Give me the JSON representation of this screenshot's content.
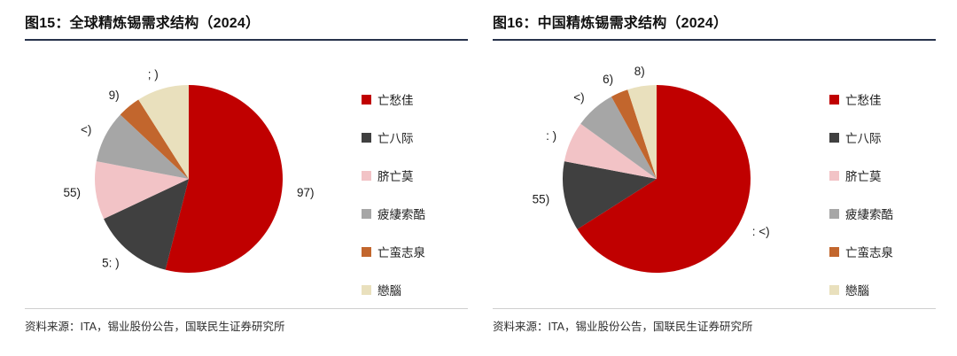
{
  "page": {
    "background": "#FFFFFF"
  },
  "colors": {
    "title_underline": "#27324B",
    "source_divider": "#CFCFCF",
    "label_text": "#1C1C1C"
  },
  "charts": [
    {
      "title": "图15：全球精炼锡需求结构（2024）",
      "source": "资料来源：ITA，锡业股份公告，国联民生证券研究所"
    },
    {
      "title": "图16：中国精炼锡需求结构（2024）",
      "source": "资料来源：ITA，锡业股份公告，国联民生证券研究所"
    }
  ],
  "chart_data": [
    {
      "type": "pie",
      "title": "图15：全球精炼锡需求结构（2024）",
      "start_angle_deg": 0,
      "direction": "clockwise",
      "legend_position": "right",
      "unit": "percent_estimated_from_arc",
      "slices": [
        {
          "name": "亡愁佳",
          "value": 54,
          "data_label": "97)",
          "color": "#C00000"
        },
        {
          "name": "亡八际",
          "value": 14,
          "data_label": "5: )",
          "color": "#404040"
        },
        {
          "name": "脐亡莫",
          "value": 10,
          "data_label": "55)",
          "color": "#F2C3C6"
        },
        {
          "name": "疲緀索酷",
          "value": 9,
          "data_label": "<)",
          "color": "#A6A6A6"
        },
        {
          "name": "亡蛮志泉",
          "value": 4,
          "data_label": "9)",
          "color": "#C2662D"
        },
        {
          "name": "戀腦",
          "value": 9,
          "data_label": "; )",
          "color": "#E9E0BD"
        }
      ]
    },
    {
      "type": "pie",
      "title": "图16：中国精炼锡需求结构（2024）",
      "start_angle_deg": 0,
      "direction": "clockwise",
      "legend_position": "right",
      "unit": "percent_estimated_from_arc",
      "slices": [
        {
          "name": "亡愁佳",
          "value": 66,
          "data_label": ": <)",
          "color": "#C00000"
        },
        {
          "name": "亡八际",
          "value": 12,
          "data_label": "55)",
          "color": "#404040"
        },
        {
          "name": "脐亡莫",
          "value": 7,
          "data_label": ": )",
          "color": "#F2C3C6"
        },
        {
          "name": "疲緀索酷",
          "value": 7,
          "data_label": "<)",
          "color": "#A6A6A6"
        },
        {
          "name": "亡蛮志泉",
          "value": 3,
          "data_label": "6)",
          "color": "#C2662D"
        },
        {
          "name": "戀腦",
          "value": 5,
          "data_label": "8)",
          "color": "#E9E0BD"
        }
      ]
    }
  ]
}
